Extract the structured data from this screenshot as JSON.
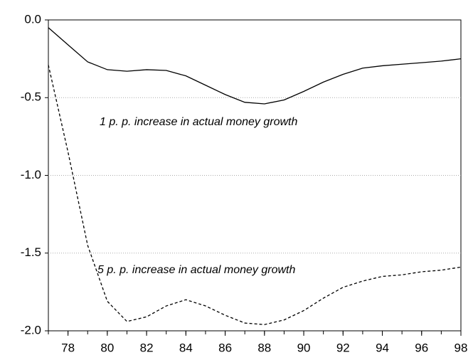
{
  "chart_data": {
    "type": "line",
    "x": [
      77,
      78,
      79,
      80,
      81,
      82,
      83,
      84,
      85,
      86,
      87,
      88,
      89,
      90,
      91,
      92,
      93,
      94,
      95,
      96,
      97,
      98
    ],
    "series": [
      {
        "color": "#000000",
        "linestyle": "solid",
        "values": [
          -0.05,
          -0.16,
          -0.27,
          -0.32,
          -0.33,
          -0.32,
          -0.325,
          -0.36,
          -0.42,
          -0.48,
          -0.53,
          -0.54,
          -0.515,
          -0.46,
          -0.4,
          -0.35,
          -0.31,
          -0.295,
          -0.285,
          -0.275,
          -0.265,
          -0.25
        ]
      },
      {
        "color": "#000000",
        "linestyle": "dashed",
        "values": [
          -0.29,
          -0.85,
          -1.45,
          -1.81,
          -1.94,
          -1.91,
          -1.84,
          -1.8,
          -1.84,
          -1.9,
          -1.95,
          -1.96,
          -1.93,
          -1.87,
          -1.79,
          -1.72,
          -1.68,
          -1.65,
          -1.64,
          -1.62,
          -1.61,
          -1.59
        ]
      }
    ],
    "annotations": [
      "1 p. p. increase in actual money growth",
      "5 p. p. increase in actual money growth"
    ],
    "xlim": [
      77,
      98
    ],
    "xticks": [
      78,
      80,
      82,
      84,
      86,
      88,
      90,
      92,
      94,
      96,
      98
    ],
    "ylim": [
      -2.0,
      0.0
    ],
    "yticks": [
      {
        "value": -2.0,
        "label": "-2.0"
      },
      {
        "value": -1.5,
        "label": "-1.5"
      },
      {
        "value": -1.0,
        "label": "-1.0"
      },
      {
        "value": -0.5,
        "label": "-0.5"
      },
      {
        "value": 0.0,
        "label": "0.0"
      }
    ],
    "grid": true
  }
}
